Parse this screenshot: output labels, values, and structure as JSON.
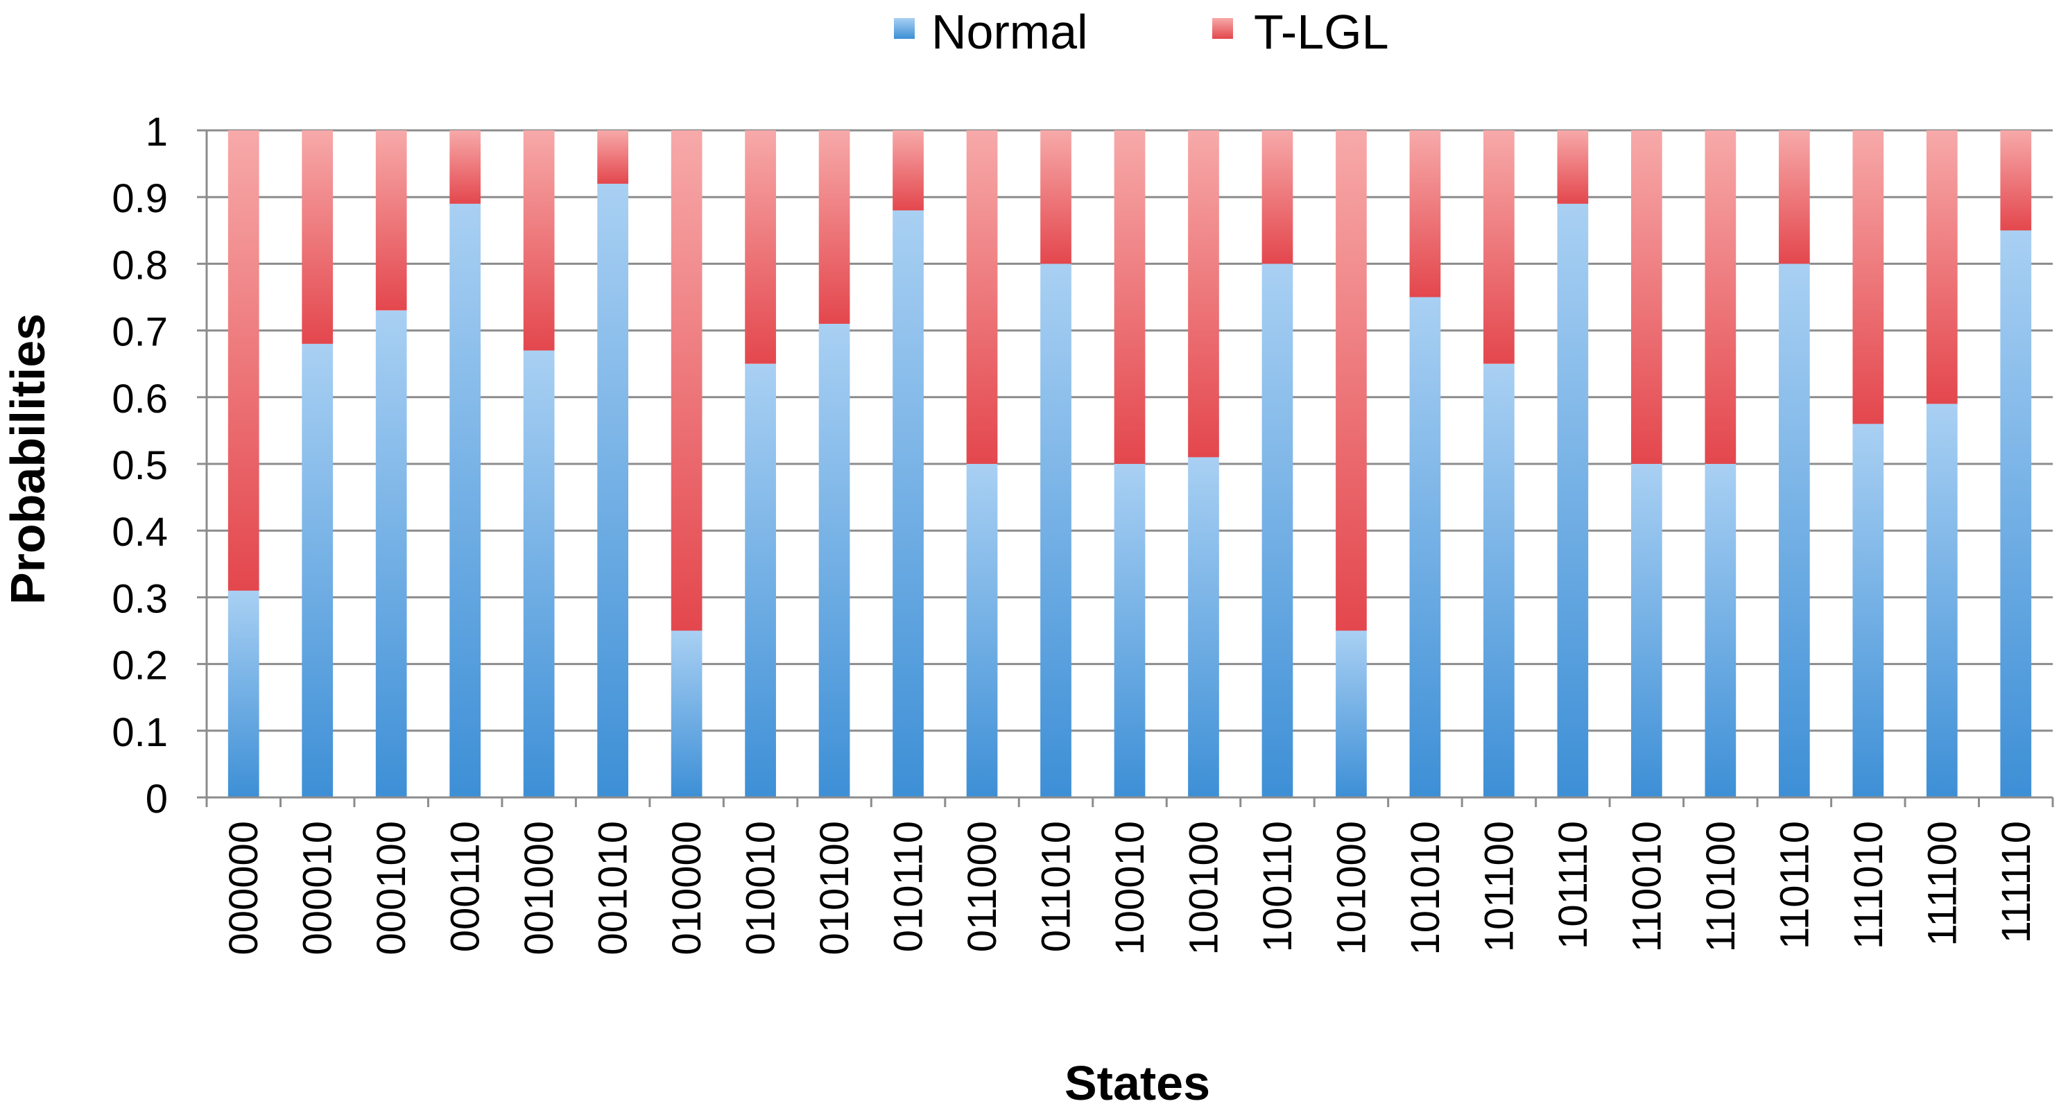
{
  "chart_data": {
    "type": "bar",
    "stacked": true,
    "title": "",
    "xlabel": "States",
    "ylabel": "Probabilities",
    "ylim": [
      0,
      1
    ],
    "yticks": [
      "0",
      "0.1",
      "0.2",
      "0.3",
      "0.4",
      "0.5",
      "0.6",
      "0.7",
      "0.8",
      "0.9",
      "1"
    ],
    "grid": true,
    "legend_position": "top",
    "categories": [
      "000000",
      "000010",
      "000100",
      "000110",
      "001000",
      "001010",
      "010000",
      "010010",
      "010100",
      "010110",
      "011000",
      "011010",
      "100010",
      "100100",
      "100110",
      "101000",
      "101010",
      "101100",
      "101110",
      "110010",
      "110100",
      "110110",
      "111010",
      "111100",
      "111110"
    ],
    "series": [
      {
        "name": "Normal",
        "color": "#4a9ad8",
        "values": [
          0.31,
          0.68,
          0.73,
          0.89,
          0.67,
          0.92,
          0.25,
          0.65,
          0.71,
          0.88,
          0.5,
          0.8,
          0.5,
          0.51,
          0.8,
          0.25,
          0.75,
          0.65,
          0.89,
          0.5,
          0.5,
          0.8,
          0.56,
          0.59,
          0.85
        ]
      },
      {
        "name": "T-LGL",
        "color": "#e8545a",
        "values": [
          0.69,
          0.32,
          0.27,
          0.11,
          0.33,
          0.08,
          0.75,
          0.35,
          0.29,
          0.12,
          0.5,
          0.2,
          0.5,
          0.49,
          0.2,
          0.75,
          0.25,
          0.35,
          0.11,
          0.5,
          0.5,
          0.2,
          0.44,
          0.41,
          0.15
        ]
      }
    ]
  }
}
